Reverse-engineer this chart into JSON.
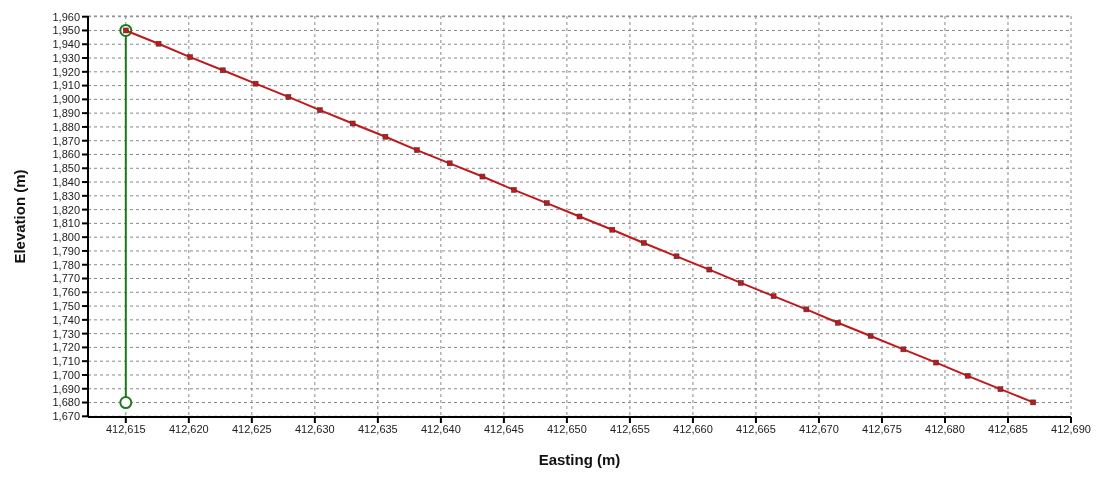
{
  "chart_data": {
    "type": "line",
    "xlabel": "Easting (m)",
    "ylabel": "Elevation (m)",
    "xlim": [
      412612,
      412690
    ],
    "ylim": [
      1669.5,
      1960.5
    ],
    "xticks": [
      {
        "value": 412615,
        "label": "412,615"
      },
      {
        "value": 412620,
        "label": "412,620"
      },
      {
        "value": 412625,
        "label": "412,625"
      },
      {
        "value": 412630,
        "label": "412,630"
      },
      {
        "value": 412635,
        "label": "412,635"
      },
      {
        "value": 412640,
        "label": "412,640"
      },
      {
        "value": 412645,
        "label": "412,645"
      },
      {
        "value": 412650,
        "label": "412,650"
      },
      {
        "value": 412655,
        "label": "412,655"
      },
      {
        "value": 412660,
        "label": "412,660"
      },
      {
        "value": 412665,
        "label": "412,665"
      },
      {
        "value": 412670,
        "label": "412,670"
      },
      {
        "value": 412675,
        "label": "412,675"
      },
      {
        "value": 412680,
        "label": "412,680"
      },
      {
        "value": 412685,
        "label": "412,685"
      },
      {
        "value": 412690,
        "label": "412,690"
      }
    ],
    "yticks": [
      {
        "value": 1670,
        "label": "1,670"
      },
      {
        "value": 1680,
        "label": "1,680"
      },
      {
        "value": 1690,
        "label": "1,690"
      },
      {
        "value": 1700,
        "label": "1,700"
      },
      {
        "value": 1710,
        "label": "1,710"
      },
      {
        "value": 1720,
        "label": "1,720"
      },
      {
        "value": 1730,
        "label": "1,730"
      },
      {
        "value": 1740,
        "label": "1,740"
      },
      {
        "value": 1750,
        "label": "1,750"
      },
      {
        "value": 1760,
        "label": "1,760"
      },
      {
        "value": 1770,
        "label": "1,770"
      },
      {
        "value": 1780,
        "label": "1,780"
      },
      {
        "value": 1790,
        "label": "1,790"
      },
      {
        "value": 1800,
        "label": "1,800"
      },
      {
        "value": 1810,
        "label": "1,810"
      },
      {
        "value": 1820,
        "label": "1,820"
      },
      {
        "value": 1830,
        "label": "1,830"
      },
      {
        "value": 1840,
        "label": "1,840"
      },
      {
        "value": 1850,
        "label": "1,850"
      },
      {
        "value": 1860,
        "label": "1,860"
      },
      {
        "value": 1870,
        "label": "1,870"
      },
      {
        "value": 1880,
        "label": "1,880"
      },
      {
        "value": 1890,
        "label": "1,890"
      },
      {
        "value": 1900,
        "label": "1,900"
      },
      {
        "value": 1910,
        "label": "1,910"
      },
      {
        "value": 1920,
        "label": "1,920"
      },
      {
        "value": 1930,
        "label": "1,930"
      },
      {
        "value": 1940,
        "label": "1,940"
      },
      {
        "value": 1950,
        "label": "1,950"
      },
      {
        "value": 1960,
        "label": "1,960"
      }
    ],
    "grid": true,
    "line_style": "solid",
    "series": [
      {
        "color": "#1e7a1e",
        "marker": "circle",
        "x": [
          412615,
          412615
        ],
        "values": [
          1680,
          1950
        ]
      },
      {
        "color": "#c0191c",
        "marker": "square",
        "x": [
          412615.0,
          412617.6,
          412620.1,
          412622.7,
          412625.3,
          412627.9,
          412630.4,
          412633.0,
          412635.6,
          412638.1,
          412640.7,
          412643.3,
          412645.8,
          412648.4,
          412651.0,
          412653.6,
          412656.1,
          412658.7,
          412661.3,
          412663.8,
          412666.4,
          412669.0,
          412671.5,
          412674.1,
          412676.7,
          412679.3,
          412681.8,
          412684.4,
          412687.0
        ],
        "values": [
          1950.0,
          1940.4,
          1930.7,
          1921.1,
          1911.4,
          1901.8,
          1892.2,
          1882.5,
          1872.9,
          1863.2,
          1853.6,
          1844.0,
          1834.3,
          1824.7,
          1815.0,
          1805.4,
          1795.8,
          1786.1,
          1776.5,
          1766.8,
          1757.2,
          1747.6,
          1737.9,
          1728.3,
          1718.6,
          1709.0,
          1699.4,
          1689.7,
          1680.1
        ]
      }
    ]
  }
}
